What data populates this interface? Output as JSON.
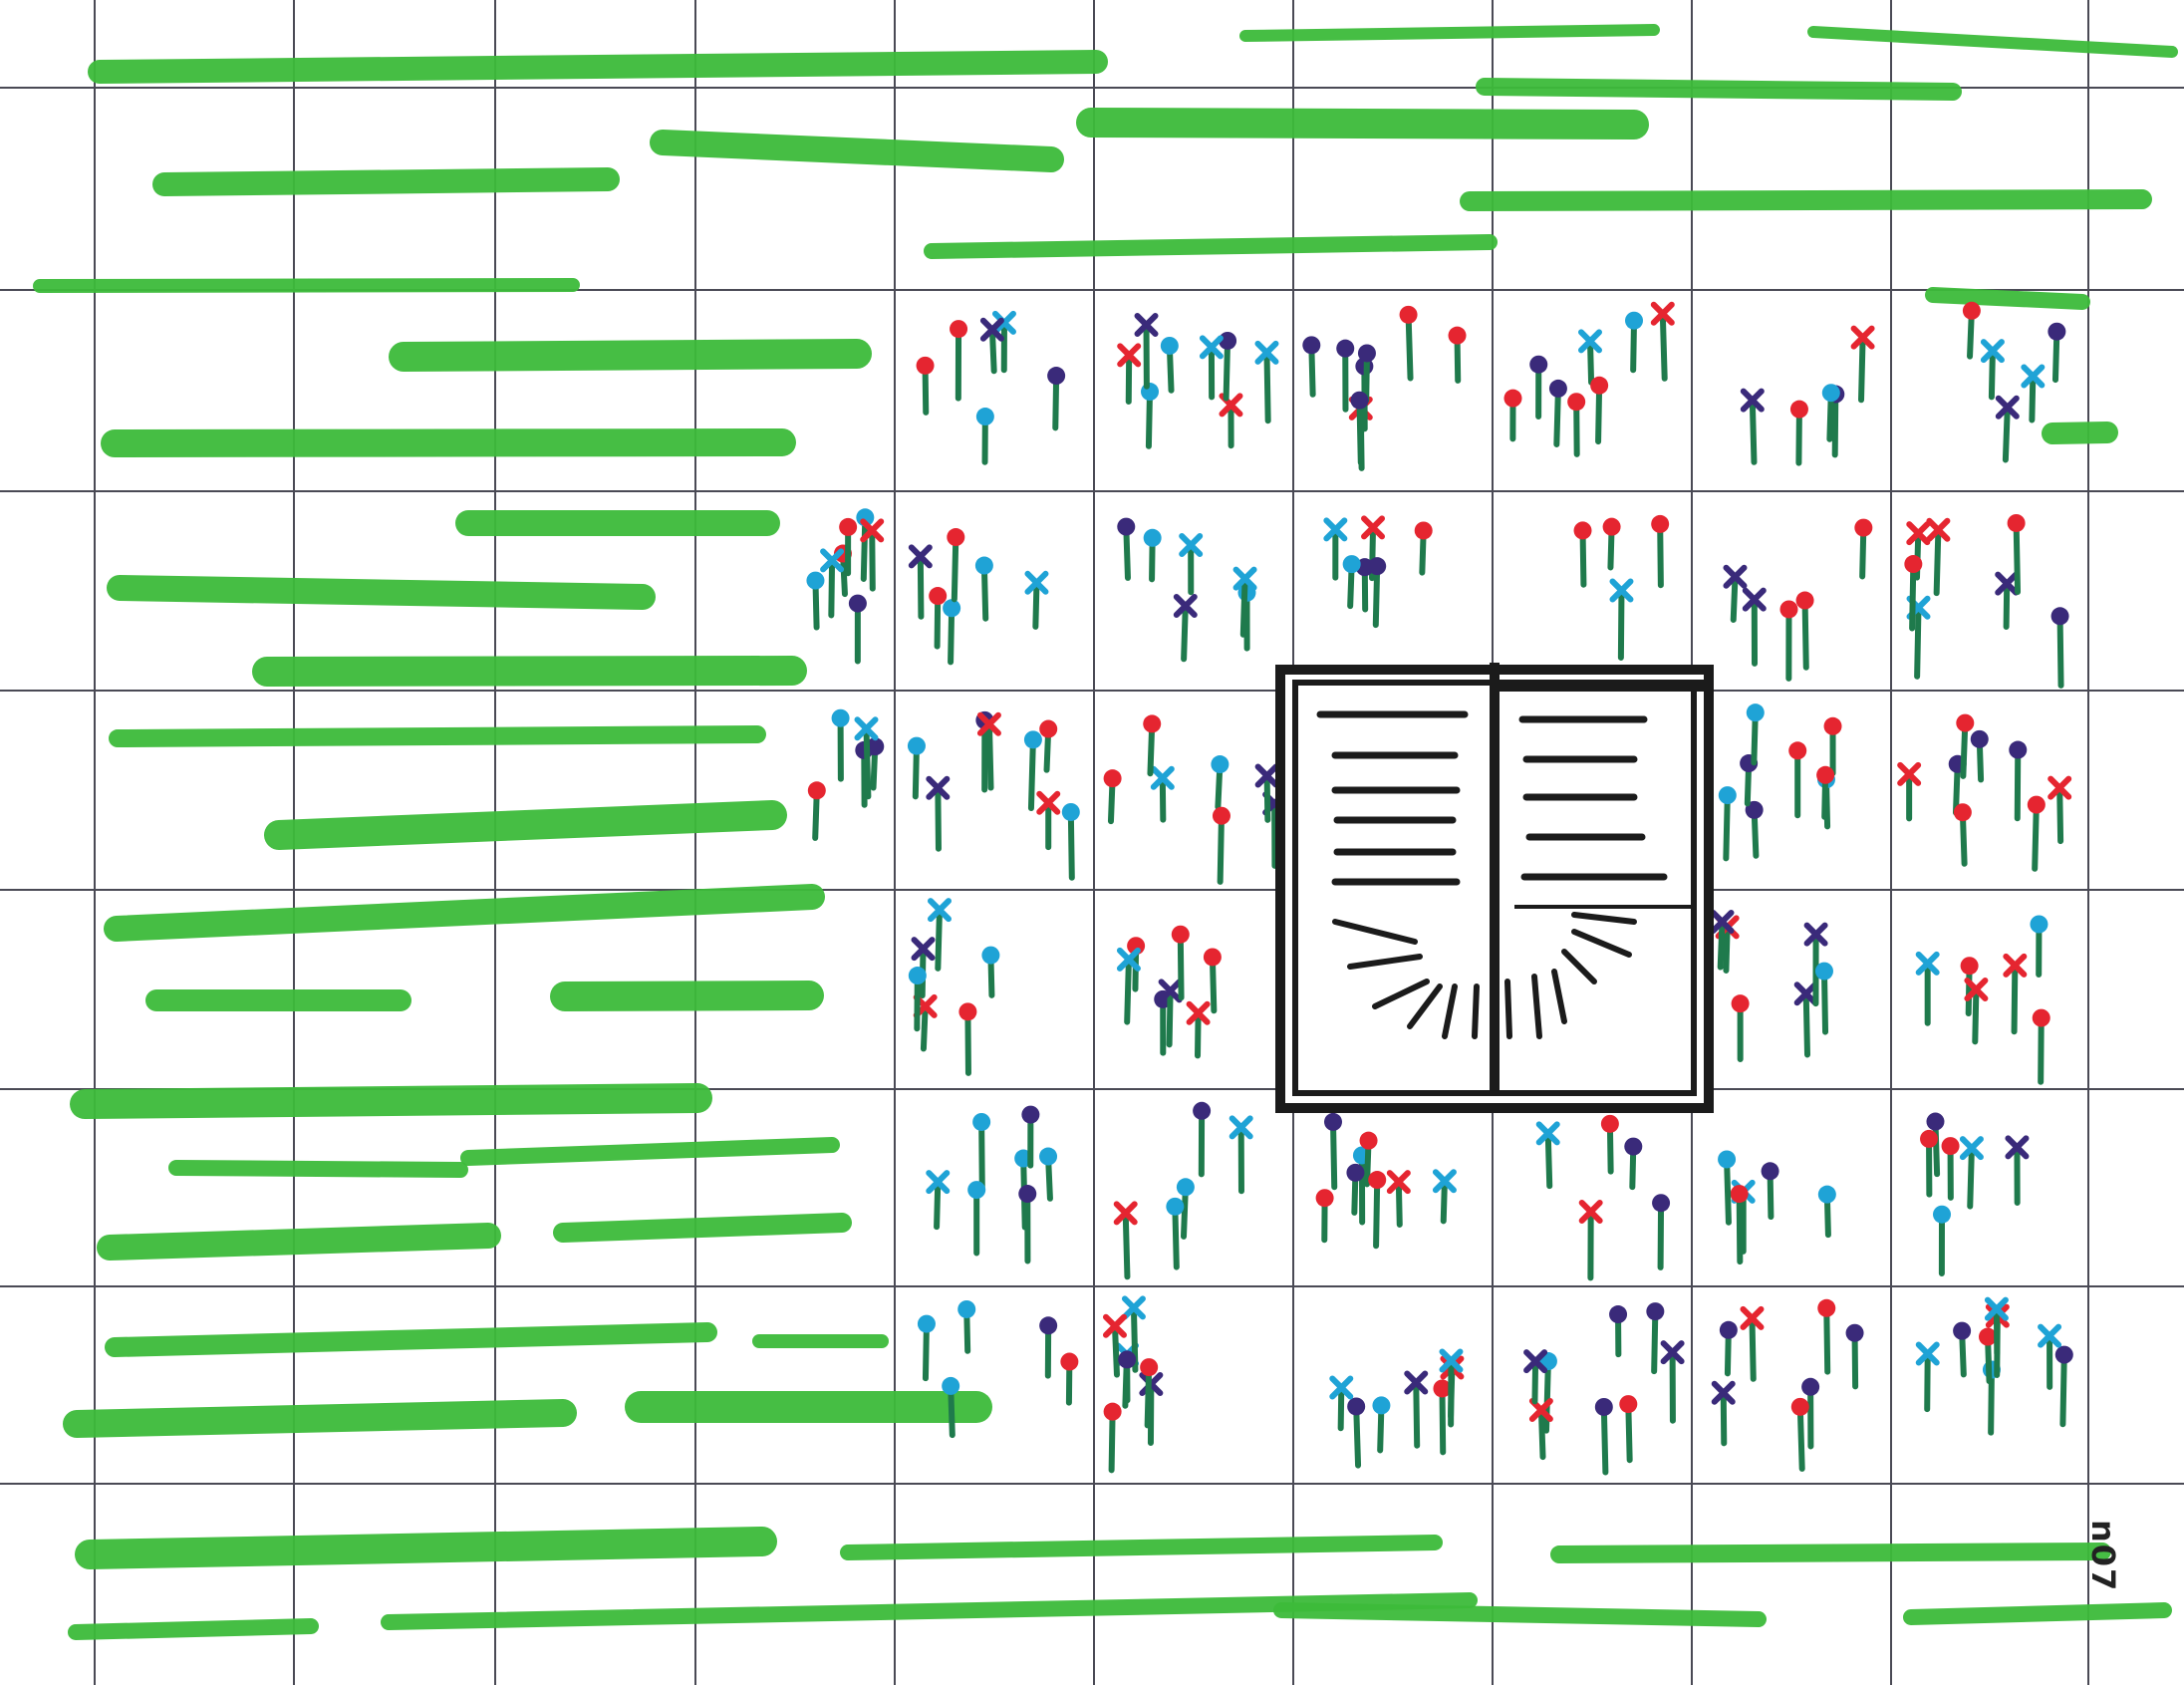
{
  "sheet": {
    "corner_code": "n07"
  },
  "legend_colors": {
    "grid_line": "#4a4a55",
    "grass": "#3dbb3a",
    "stem": "#1f7a4c",
    "flower_red": "#e52530",
    "flower_blue": "#1fa3d6",
    "flower_purple": "#3a2a7a",
    "book_ink": "#1b1b1b"
  },
  "icons": {
    "grid": "grid-lines-icon",
    "grass": "grass-stroke-icon",
    "flower": "flower-icon",
    "book": "open-book-icon"
  }
}
